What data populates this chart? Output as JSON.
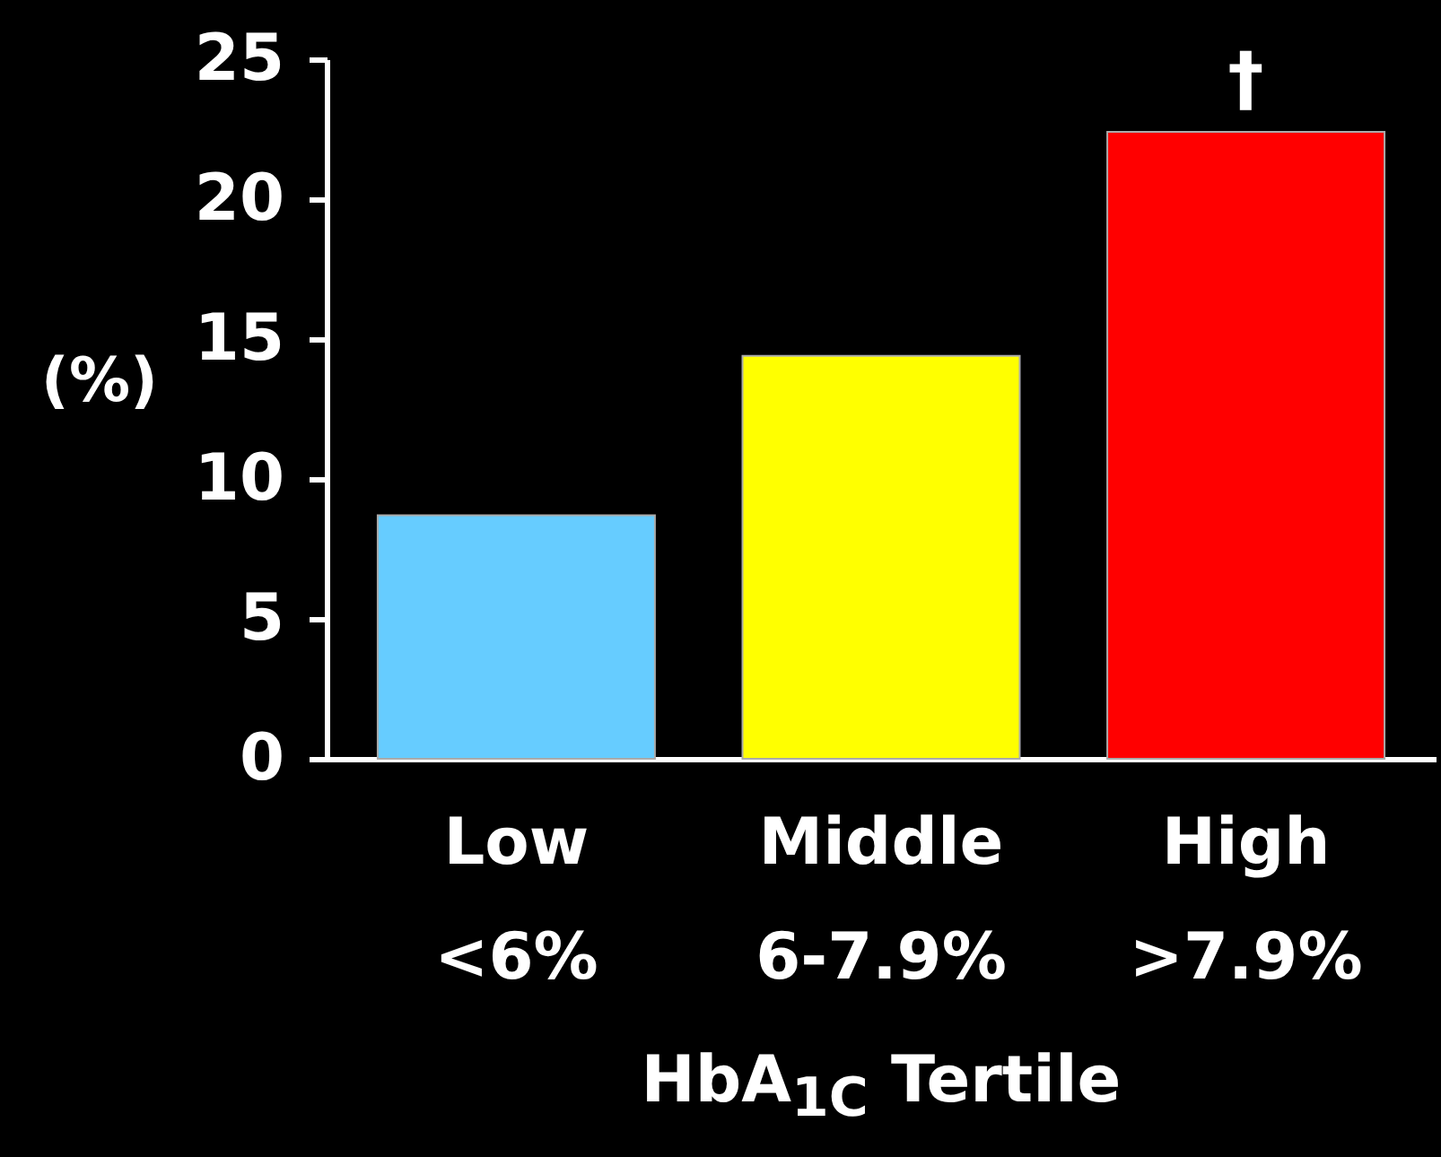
{
  "chart_data": {
    "type": "bar",
    "xlabel": "HbA$_{1C}$ Tertile",
    "ylabel": "(%)",
    "categories": [
      "Low\n<6%",
      "Middle\n6-7.9%",
      "High\n>7.9%"
    ],
    "values": [
      8.7,
      14.4,
      22.4
    ],
    "colors": [
      "#66ccff",
      "#ffff00",
      "#ff0000"
    ],
    "ylim": [
      0,
      25
    ],
    "yticks": [
      0,
      5,
      10,
      15,
      20,
      25
    ],
    "grid": false,
    "annotations": [
      {
        "text": "†",
        "x": "High\n>7.9%",
        "y": 22.4
      }
    ]
  }
}
